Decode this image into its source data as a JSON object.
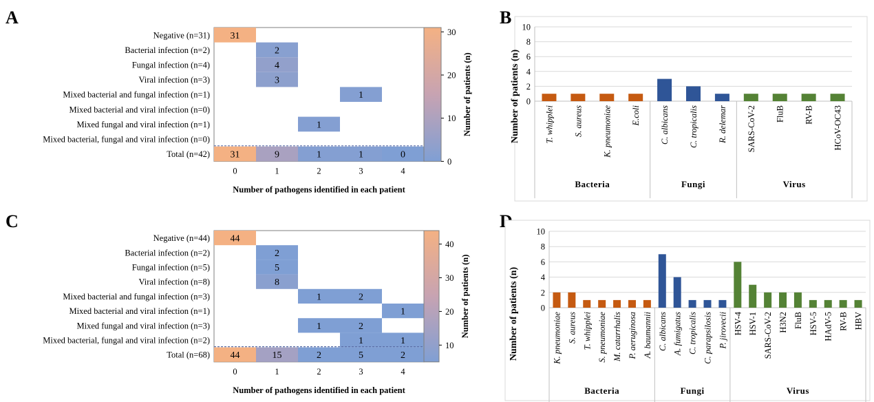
{
  "panel_letters": [
    "A",
    "B",
    "C",
    "D"
  ],
  "colors": {
    "scale_low": "#7f9fd4",
    "scale_mid": "#c7a3b2",
    "scale_high": "#f4b183",
    "bacteria": "#c55a11",
    "fungi": "#2f5597",
    "virus": "#548235",
    "grid": "#d9d9d9",
    "dashed": "#ffffff"
  },
  "chart_data": [
    {
      "panel": "A",
      "type": "heatmap",
      "rows": [
        "Negative (n=31)",
        "Bacterial infection (n=2)",
        "Fungal infection (n=4)",
        "Viral infection (n=3)",
        "Mixed bacterial and fungal infection (n=1)",
        "Mixed bacterial and viral infection (n=0)",
        "Mixed fungal and viral infection (n=1)",
        "Mixed bacterial, fungal and viral infection (n=0)",
        "Total (n=42)"
      ],
      "columns": [
        "0",
        "1",
        "2",
        "3",
        "4"
      ],
      "cells": [
        {
          "row": 0,
          "col": 0,
          "value": 31
        },
        {
          "row": 1,
          "col": 1,
          "value": 2
        },
        {
          "row": 2,
          "col": 1,
          "value": 4
        },
        {
          "row": 3,
          "col": 1,
          "value": 3
        },
        {
          "row": 4,
          "col": 3,
          "value": 1
        },
        {
          "row": 6,
          "col": 2,
          "value": 1
        },
        {
          "row": 8,
          "col": 0,
          "value": 31
        },
        {
          "row": 8,
          "col": 1,
          "value": 9
        },
        {
          "row": 8,
          "col": 2,
          "value": 1
        },
        {
          "row": 8,
          "col": 3,
          "value": 1
        },
        {
          "row": 8,
          "col": 4,
          "value": 0
        }
      ],
      "xlabel": "Number of pathogens identified in each patient",
      "colorbar_label": "Number of patients (n)",
      "colorbar_ticks": [
        0,
        10,
        20,
        30
      ],
      "colorbar_range": [
        0,
        31
      ]
    },
    {
      "panel": "B",
      "type": "bar",
      "ylabel": "Number of patients (n)",
      "ylim": [
        0,
        10
      ],
      "yticks": [
        0,
        2,
        4,
        6,
        8,
        10
      ],
      "groups": [
        {
          "name": "Bacteria",
          "color_key": "bacteria",
          "categories": [
            "T. whipplei",
            "S. aureus",
            "K. pneumoniae",
            "E.coli"
          ],
          "values": [
            1,
            1,
            1,
            1
          ]
        },
        {
          "name": "Fungi",
          "color_key": "fungi",
          "categories": [
            "C. albicans",
            "C. tropicalis",
            "R. delemar"
          ],
          "values": [
            3,
            2,
            1
          ]
        },
        {
          "name": "Virus",
          "color_key": "virus",
          "categories": [
            "SARS-CoV-2",
            "FluB",
            "RV-B",
            "HCoV-OC43"
          ],
          "values": [
            1,
            1,
            1,
            1
          ]
        }
      ]
    },
    {
      "panel": "C",
      "type": "heatmap",
      "rows": [
        "Negative (n=44)",
        "Bacterial infection (n=2)",
        "Fungal infection (n=5)",
        "Viral infection (n=8)",
        "Mixed bacterial and fungal infection (n=3)",
        "Mixed bacterial and viral infection (n=1)",
        "Mixed fungal and viral infection (n=3)",
        "Mixed bacterial, fungal and viral infection (n=2)",
        "Total (n=68)"
      ],
      "columns": [
        "0",
        "1",
        "2",
        "3",
        "4"
      ],
      "cells": [
        {
          "row": 0,
          "col": 0,
          "value": 44
        },
        {
          "row": 1,
          "col": 1,
          "value": 2
        },
        {
          "row": 2,
          "col": 1,
          "value": 5
        },
        {
          "row": 3,
          "col": 1,
          "value": 8
        },
        {
          "row": 4,
          "col": 2,
          "value": 1
        },
        {
          "row": 4,
          "col": 3,
          "value": 2
        },
        {
          "row": 5,
          "col": 4,
          "value": 1
        },
        {
          "row": 6,
          "col": 2,
          "value": 1
        },
        {
          "row": 6,
          "col": 3,
          "value": 2
        },
        {
          "row": 7,
          "col": 3,
          "value": 1
        },
        {
          "row": 7,
          "col": 4,
          "value": 1
        },
        {
          "row": 8,
          "col": 0,
          "value": 44
        },
        {
          "row": 8,
          "col": 1,
          "value": 15
        },
        {
          "row": 8,
          "col": 2,
          "value": 2
        },
        {
          "row": 8,
          "col": 3,
          "value": 5
        },
        {
          "row": 8,
          "col": 4,
          "value": 2
        }
      ],
      "xlabel": "Number of pathogens identified in each patient",
      "colorbar_label": "Number of patients (n)",
      "colorbar_ticks": [
        10,
        20,
        30,
        40
      ],
      "colorbar_range": [
        5,
        44
      ]
    },
    {
      "panel": "D",
      "type": "bar",
      "ylabel": "Number of patients (n)",
      "ylim": [
        0,
        10
      ],
      "yticks": [
        0,
        2,
        4,
        6,
        8,
        10
      ],
      "groups": [
        {
          "name": "Bacteria",
          "color_key": "bacteria",
          "categories": [
            "K. pneumoniae",
            "S. aureus",
            "T. whipplei",
            "S. pneumoniae",
            "M. catarrhalis",
            "P. aeruginosa",
            "A. baumannii"
          ],
          "values": [
            2,
            2,
            1,
            1,
            1,
            1,
            1
          ]
        },
        {
          "name": "Fungi",
          "color_key": "fungi",
          "categories": [
            "C. albicans",
            "A. fumigatus",
            "C. tropicalis",
            "C. parapsilosis",
            "P. jirovecii"
          ],
          "values": [
            7,
            4,
            1,
            1,
            1
          ]
        },
        {
          "name": "Virus",
          "color_key": "virus",
          "categories": [
            "HSV-4",
            "HSV-1",
            "SARS-CoV-2",
            "H3N2",
            "FluB",
            "HSV-5",
            "HAdV-5",
            "RV-B",
            "HBV"
          ],
          "values": [
            6,
            3,
            2,
            2,
            2,
            1,
            1,
            1,
            1
          ]
        }
      ]
    }
  ]
}
